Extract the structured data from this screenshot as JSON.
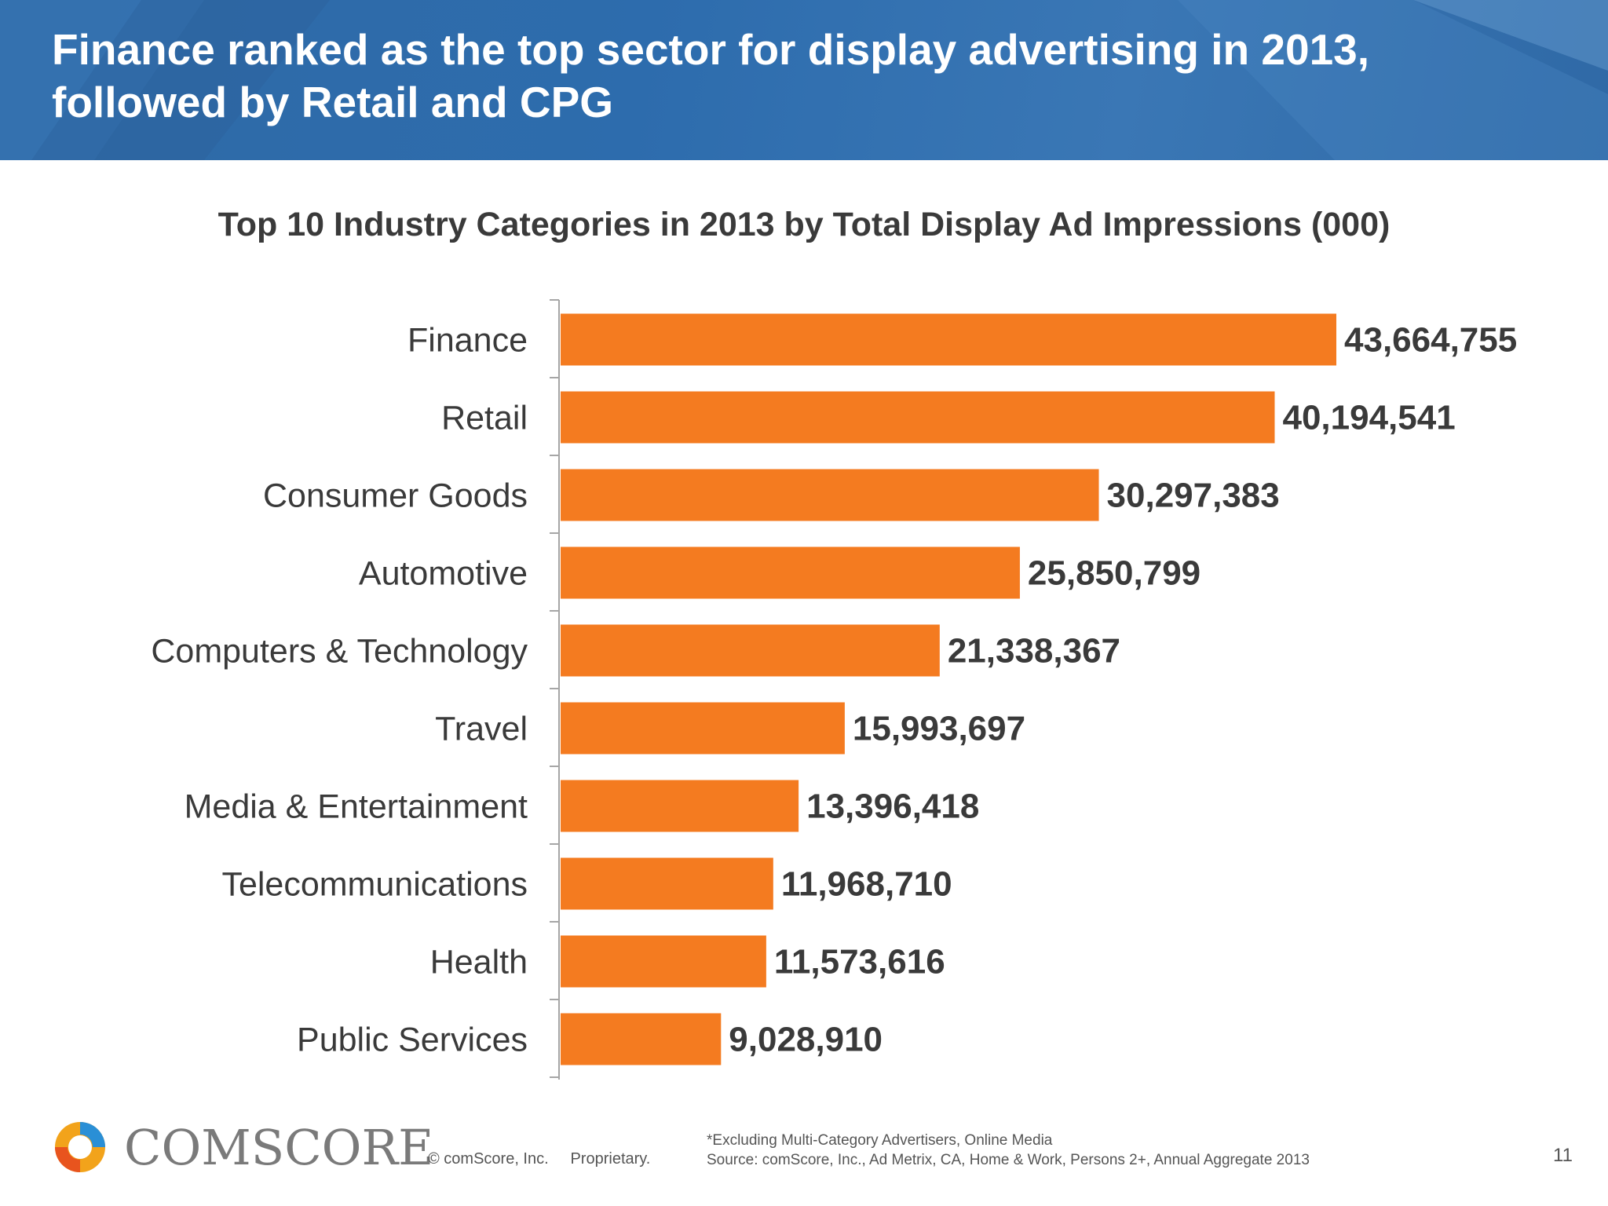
{
  "header": {
    "title_line1": "Finance ranked as the top sector for display advertising in 2013,",
    "title_line2": "followed by Retail and CPG"
  },
  "colors": {
    "header_bg": "#2f6aa6",
    "bar": "#f47b20",
    "axis": "#a6a6a6",
    "label_text": "#3a3a3a"
  },
  "chart_data": {
    "type": "bar",
    "orientation": "horizontal",
    "title": "Top 10 Industry Categories in 2013 by Total Display Ad Impressions (000)",
    "categories": [
      "Finance",
      "Retail",
      "Consumer Goods",
      "Automotive",
      "Computers & Technology",
      "Travel",
      "Media & Entertainment",
      "Telecommunications",
      "Health",
      "Public Services"
    ],
    "values": [
      43664755,
      40194541,
      30297383,
      25850799,
      21338367,
      15993697,
      13396418,
      11968710,
      11573616,
      9028910
    ],
    "value_labels": [
      "43,664,755",
      "40,194,541",
      "30,297,383",
      "25,850,799",
      "21,338,367",
      "15,993,697",
      "13,396,418",
      "11,968,710",
      "11,573,616",
      "9,028,910"
    ],
    "xlabel": "",
    "ylabel": "",
    "xlim": [
      0,
      43664755
    ],
    "grid": false,
    "legend": "none"
  },
  "footer": {
    "brand": "comScore",
    "brand_display": "COMSCORE",
    "copyright": "© comScore, Inc.",
    "proprietary": "Proprietary.",
    "note": "*Excluding Multi-Category Advertisers, Online Media",
    "source": "Source: comScore, Inc., Ad Metrix, CA, Home & Work, Persons 2+, Annual Aggregate 2013",
    "page_number": "11"
  }
}
